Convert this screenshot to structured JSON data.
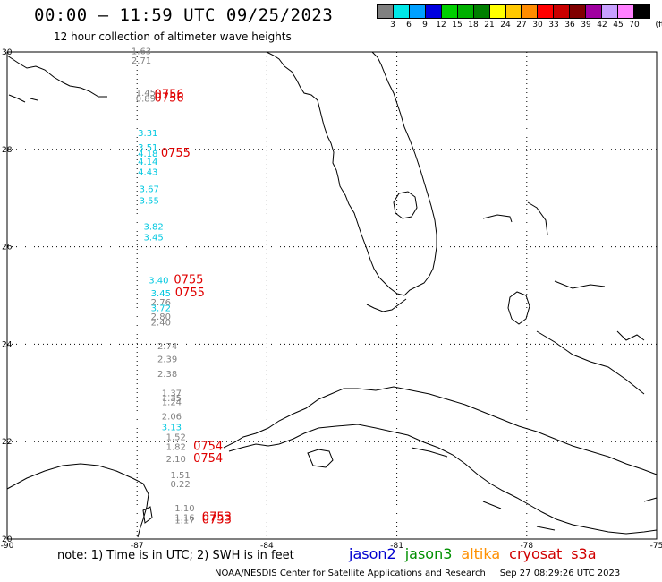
{
  "header": {
    "title": "00:00 – 11:59 UTC 09/25/2023",
    "subtitle": "12 hour collection of altimeter wave heights"
  },
  "color_scale": {
    "unit": "(ft)",
    "bins": [
      {
        "label": "3",
        "color": "#808080"
      },
      {
        "label": "6",
        "color": "#00e8e8"
      },
      {
        "label": "9",
        "color": "#00a0ff"
      },
      {
        "label": "12",
        "color": "#0000e0"
      },
      {
        "label": "15",
        "color": "#00d000"
      },
      {
        "label": "18",
        "color": "#00b000"
      },
      {
        "label": "21",
        "color": "#008000"
      },
      {
        "label": "24",
        "color": "#ffff00"
      },
      {
        "label": "27",
        "color": "#ffc800"
      },
      {
        "label": "30",
        "color": "#ff8c00"
      },
      {
        "label": "33",
        "color": "#ff0000"
      },
      {
        "label": "36",
        "color": "#c80000"
      },
      {
        "label": "39",
        "color": "#800000"
      },
      {
        "label": "42",
        "color": "#a000a0"
      },
      {
        "label": "45",
        "color": "#c8a0ff"
      },
      {
        "label": "70",
        "color": "#ff80ff"
      },
      {
        "label": "",
        "color": "#000000"
      }
    ]
  },
  "map": {
    "lat_ticks": [
      "30",
      "28",
      "26",
      "24",
      "22",
      "20"
    ],
    "lon_ticks": [
      "-90",
      "-87",
      "-84",
      "-81",
      "-78",
      "-75"
    ],
    "lat_range": [
      20,
      30
    ],
    "lon_range": [
      -90,
      -75
    ]
  },
  "observations": [
    {
      "v": "1.63",
      "lat": 29.95,
      "lon": -86.9,
      "color": "#808080"
    },
    {
      "v": "2.71",
      "lat": 29.76,
      "lon": -86.9,
      "color": "#808080"
    },
    {
      "v": "1.45",
      "lat": 29.1,
      "lon": -86.8,
      "color": "#808080"
    },
    {
      "v": "0.89",
      "lat": 28.98,
      "lon": -86.8,
      "color": "#808080"
    },
    {
      "v": "3.31",
      "lat": 28.27,
      "lon": -86.75,
      "color": "#00c8e0"
    },
    {
      "v": "3.51",
      "lat": 27.98,
      "lon": -86.75,
      "color": "#00c8e0"
    },
    {
      "v": "4.18",
      "lat": 27.85,
      "lon": -86.75,
      "color": "#00c8e0"
    },
    {
      "v": "4.14",
      "lat": 27.68,
      "lon": -86.75,
      "color": "#00c8e0"
    },
    {
      "v": "4.43",
      "lat": 27.47,
      "lon": -86.75,
      "color": "#00c8e0"
    },
    {
      "v": "3.67",
      "lat": 27.12,
      "lon": -86.72,
      "color": "#00c8e0"
    },
    {
      "v": "3.55",
      "lat": 26.88,
      "lon": -86.72,
      "color": "#00c8e0"
    },
    {
      "v": "3.82",
      "lat": 26.35,
      "lon": -86.62,
      "color": "#00c8e0"
    },
    {
      "v": "3.45",
      "lat": 26.13,
      "lon": -86.62,
      "color": "#00c8e0"
    },
    {
      "v": "3.40",
      "lat": 25.25,
      "lon": -86.5,
      "color": "#00c8e0"
    },
    {
      "v": "3.45",
      "lat": 24.98,
      "lon": -86.45,
      "color": "#00c8e0"
    },
    {
      "v": "2.76",
      "lat": 24.8,
      "lon": -86.45,
      "color": "#808080"
    },
    {
      "v": "3.72",
      "lat": 24.68,
      "lon": -86.45,
      "color": "#00c8e0"
    },
    {
      "v": "2.80",
      "lat": 24.5,
      "lon": -86.45,
      "color": "#808080"
    },
    {
      "v": "2.40",
      "lat": 24.38,
      "lon": -86.45,
      "color": "#808080"
    },
    {
      "v": "2.74",
      "lat": 23.9,
      "lon": -86.3,
      "color": "#808080"
    },
    {
      "v": "2.39",
      "lat": 23.63,
      "lon": -86.3,
      "color": "#808080"
    },
    {
      "v": "2.38",
      "lat": 23.33,
      "lon": -86.3,
      "color": "#808080"
    },
    {
      "v": "1.37",
      "lat": 22.93,
      "lon": -86.2,
      "color": "#808080"
    },
    {
      "v": "1.35",
      "lat": 22.83,
      "lon": -86.2,
      "color": "#808080"
    },
    {
      "v": "1.24",
      "lat": 22.75,
      "lon": -86.2,
      "color": "#808080"
    },
    {
      "v": "2.06",
      "lat": 22.45,
      "lon": -86.2,
      "color": "#808080"
    },
    {
      "v": "3.13",
      "lat": 22.23,
      "lon": -86.2,
      "color": "#00c8e0"
    },
    {
      "v": "1.52",
      "lat": 22.03,
      "lon": -86.1,
      "color": "#808080"
    },
    {
      "v": "1.82",
      "lat": 21.83,
      "lon": -86.1,
      "color": "#808080"
    },
    {
      "v": "2.10",
      "lat": 21.58,
      "lon": -86.1,
      "color": "#808080"
    },
    {
      "v": "1.51",
      "lat": 21.25,
      "lon": -86.0,
      "color": "#808080"
    },
    {
      "v": "0.22",
      "lat": 21.07,
      "lon": -86.0,
      "color": "#808080"
    },
    {
      "v": "1.10",
      "lat": 20.57,
      "lon": -85.9,
      "color": "#808080"
    },
    {
      "v": "1.16",
      "lat": 20.38,
      "lon": -85.9,
      "color": "#808080"
    },
    {
      "v": "1.17",
      "lat": 20.32,
      "lon": -85.9,
      "color": "#808080"
    }
  ],
  "time_labels": [
    {
      "t": "0756",
      "lat": 29.05,
      "lon": -86.6
    },
    {
      "t": "0756",
      "lat": 28.98,
      "lon": -86.6
    },
    {
      "t": "0755",
      "lat": 27.85,
      "lon": -86.45
    },
    {
      "t": "0755",
      "lat": 25.25,
      "lon": -86.15
    },
    {
      "t": "0755",
      "lat": 24.98,
      "lon": -86.12
    },
    {
      "t": "0754",
      "lat": 21.83,
      "lon": -85.7
    },
    {
      "t": "0754",
      "lat": 21.58,
      "lon": -85.7
    },
    {
      "t": "0753",
      "lat": 20.38,
      "lon": -85.5
    },
    {
      "t": "0753",
      "lat": 20.32,
      "lon": -85.5
    }
  ],
  "note": "note: 1) Time is in UTC; 2) SWH is in feet",
  "satellites": [
    {
      "name": "jason2",
      "color": "#0000d0"
    },
    {
      "name": "jason3",
      "color": "#009000"
    },
    {
      "name": "altika",
      "color": "#ff9000"
    },
    {
      "name": "cryosat",
      "color": "#d00000"
    },
    {
      "name": "s3a",
      "color": "#d00000"
    }
  ],
  "credit": {
    "org": "NOAA/NESDIS Center for Satellite Applications and Research",
    "timestamp": "Sep 27 08:29:26 UTC 2023"
  }
}
